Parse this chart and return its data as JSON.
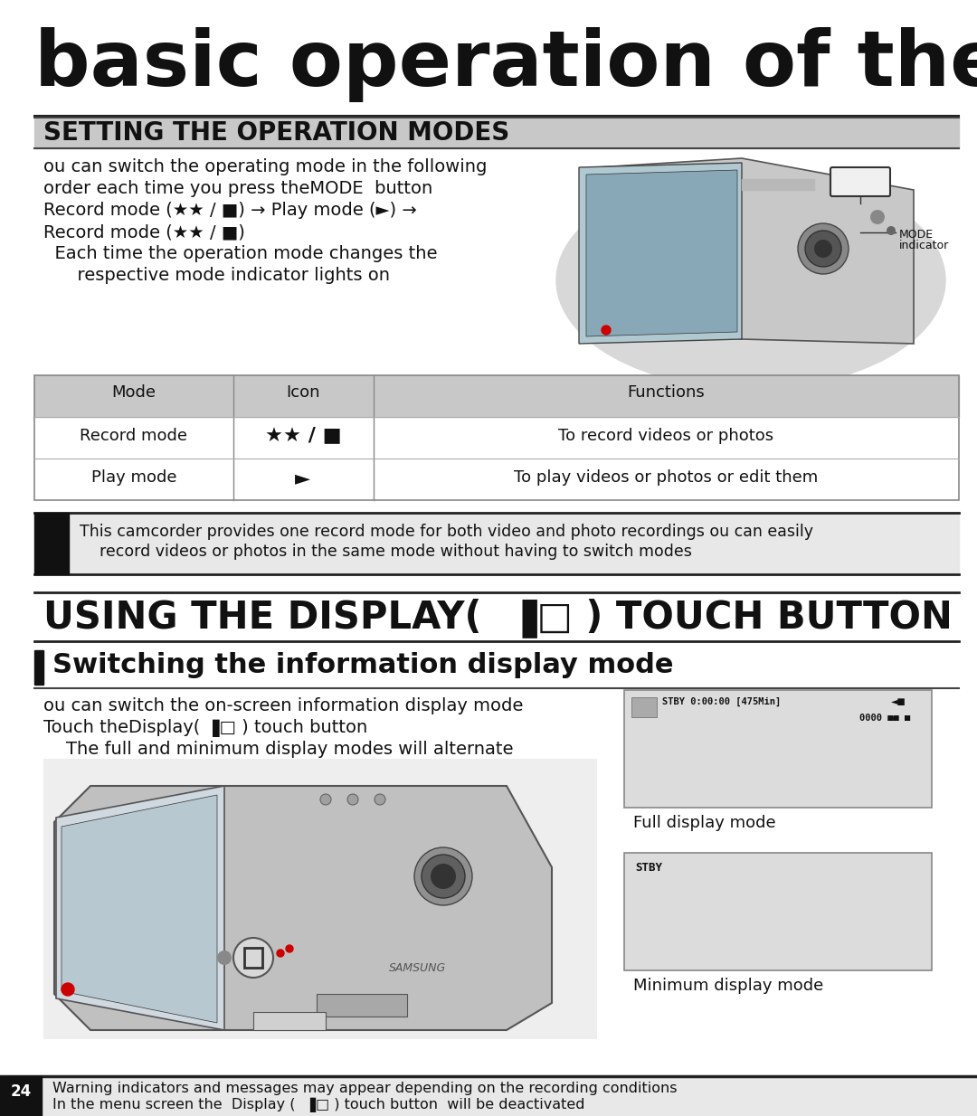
{
  "title": "basic operation of the camcorde",
  "sec1_title": "SETTING THE OPERATION MODES",
  "body1_lines": [
    "ou can switch the operating mode in the following",
    "order each time you press the​MODE  button",
    "Record mode (•• / □) → Play mode (►) →",
    "Record mode (•• / □)",
    "Each time the operation mode changes the",
    "    respective mode indicator lights on"
  ],
  "table_header": [
    "Mode",
    "Icon",
    "Functions"
  ],
  "row1": [
    "Record mode",
    "•• / □",
    "To record videos or photos"
  ],
  "row2": [
    "Play mode",
    "►",
    "To play videos or photos or edit them"
  ],
  "note1_text1": "This camcorder provides one record mode for both video and photo recordings ou can easily",
  "note1_text2": "    record videos or photos in the same mode without having to switch modes",
  "sec2_title": "USING THE DISPLAY(  ▐□ ) TOUCH BUTTON",
  "sec2_sub": "Switching the information display mode",
  "body2_lines": [
    "ou can switch the on-screen information display mode",
    "Touch the​Display( ▐□ ) touch button",
    "    The full and minimum display modes will alternate"
  ],
  "full_display_stby": "STBY 0:00:00 [475Min]",
  "full_display_line2": "0000",
  "full_display_label": "Full display mode",
  "min_display_stby": "STBY",
  "min_display_label": "Minimum display mode",
  "footer_line1": "Warning indicators and messages may appear depending on the recording conditions",
  "footer_line2": "In the menu screen the  Display (  ▐□ ) touch button  will be deactivated",
  "page_num": "24",
  "bg": "#ffffff",
  "gray_light": "#e8e8e8",
  "gray_med": "#c8c8c8",
  "gray_dark": "#555555",
  "black": "#111111",
  "disp_bg": "#dcdcdc",
  "disp_border": "#888888"
}
